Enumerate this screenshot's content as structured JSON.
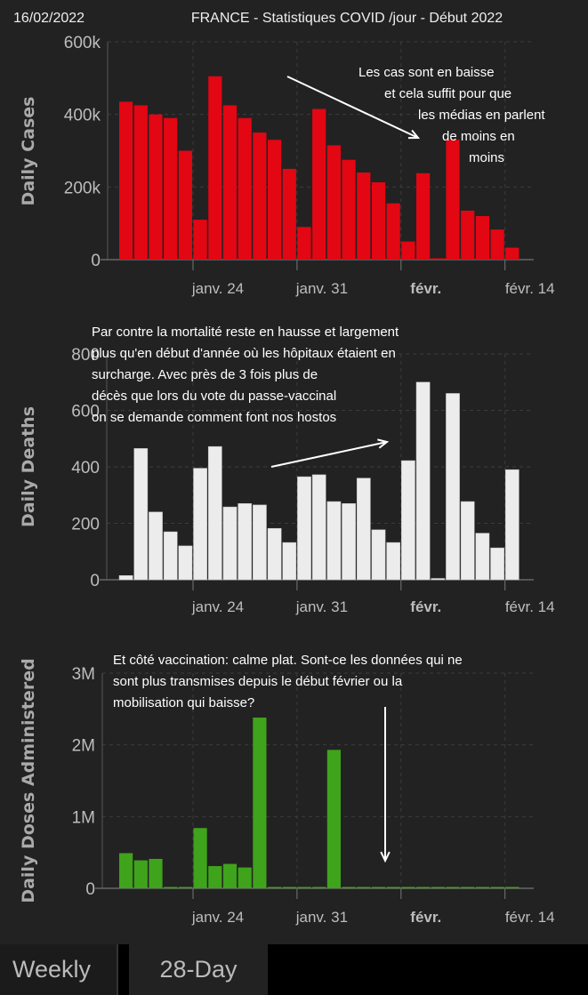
{
  "header": {
    "date": "16/02/2022",
    "title": "FRANCE - Statistiques COVID /jour - Début 2022"
  },
  "tabs": [
    {
      "label": "Weekly",
      "selected": false
    },
    {
      "label": "28-Day",
      "selected": true
    }
  ],
  "chart_data": [
    {
      "type": "bar",
      "ylabel": "Daily Cases",
      "color": "#e30613",
      "ylim": [
        0,
        600000
      ],
      "yticks": [
        {
          "v": 0,
          "label": "0"
        },
        {
          "v": 200000,
          "label": "200k"
        },
        {
          "v": 400000,
          "label": "400k"
        },
        {
          "v": 600000,
          "label": "600k"
        }
      ],
      "xticks": [
        {
          "day": 5,
          "label": "janv. 24",
          "bold": false
        },
        {
          "day": 12,
          "label": "janv. 31",
          "bold": false
        },
        {
          "day": 19,
          "label": "févr.",
          "bold": true
        },
        {
          "day": 26,
          "label": "févr. 14",
          "bold": false
        }
      ],
      "x_start": "janv. 19",
      "values": [
        435000,
        425000,
        400000,
        390000,
        300000,
        110000,
        505000,
        425000,
        390000,
        350000,
        330000,
        250000,
        90000,
        415000,
        315000,
        275000,
        240000,
        213000,
        155000,
        50000,
        238000,
        3000,
        330000,
        135000,
        120000,
        83000,
        33000
      ],
      "annotation": [
        "Les cas sont en baisse",
        "et cela suffit pour que",
        "les médias en parlent",
        "de moins en",
        "moins"
      ]
    },
    {
      "type": "bar",
      "ylabel": "Daily Deaths",
      "color": "#ececec",
      "ylim": [
        0,
        800
      ],
      "yticks": [
        {
          "v": 0,
          "label": "0"
        },
        {
          "v": 200,
          "label": "200"
        },
        {
          "v": 400,
          "label": "400"
        },
        {
          "v": 600,
          "label": "600"
        },
        {
          "v": 800,
          "label": "800"
        }
      ],
      "xticks": [
        {
          "day": 5,
          "label": "janv. 24",
          "bold": false
        },
        {
          "day": 12,
          "label": "janv. 31",
          "bold": false
        },
        {
          "day": 19,
          "label": "févr.",
          "bold": true
        },
        {
          "day": 26,
          "label": "févr. 14",
          "bold": false
        }
      ],
      "x_start": "janv. 19",
      "values": [
        15,
        465,
        240,
        170,
        120,
        395,
        472,
        258,
        270,
        265,
        182,
        132,
        365,
        372,
        277,
        270,
        360,
        177,
        132,
        422,
        700,
        3,
        660,
        277,
        165,
        113,
        390
      ],
      "annotation": [
        "Par contre la mortalité reste en hausse et largement",
        "plus qu'en début d'année où les hôpitaux  étaient en",
        "surcharge. Avec près de 3 fois plus de",
        "décès que lors du vote du passe-vaccinal",
        "on se demande comment font nos hostos"
      ]
    },
    {
      "type": "bar",
      "ylabel": "Daily Doses Administered",
      "color": "#3fa31b",
      "ylim": [
        0,
        3000000
      ],
      "yticks": [
        {
          "v": 0,
          "label": "0"
        },
        {
          "v": 1000000,
          "label": "1M"
        },
        {
          "v": 2000000,
          "label": "2M"
        },
        {
          "v": 3000000,
          "label": "3M"
        }
      ],
      "xticks": [
        {
          "day": 5,
          "label": "janv. 24",
          "bold": false
        },
        {
          "day": 12,
          "label": "janv. 31",
          "bold": false
        },
        {
          "day": 19,
          "label": "févr.",
          "bold": true
        },
        {
          "day": 26,
          "label": "févr. 14",
          "bold": false
        }
      ],
      "x_start": "janv. 19",
      "values": [
        490000,
        390000,
        410000,
        0,
        0,
        840000,
        310000,
        340000,
        290000,
        2380000,
        0,
        0,
        0,
        0,
        1930000,
        0,
        0,
        0,
        0,
        0,
        0,
        0,
        0,
        0,
        0,
        0,
        0
      ],
      "annotation": [
        "Et côté vaccination: calme plat. Sont-ce les données qui ne",
        "sont plus transmises depuis le début février ou  la",
        "mobilisation qui baisse?"
      ]
    }
  ]
}
